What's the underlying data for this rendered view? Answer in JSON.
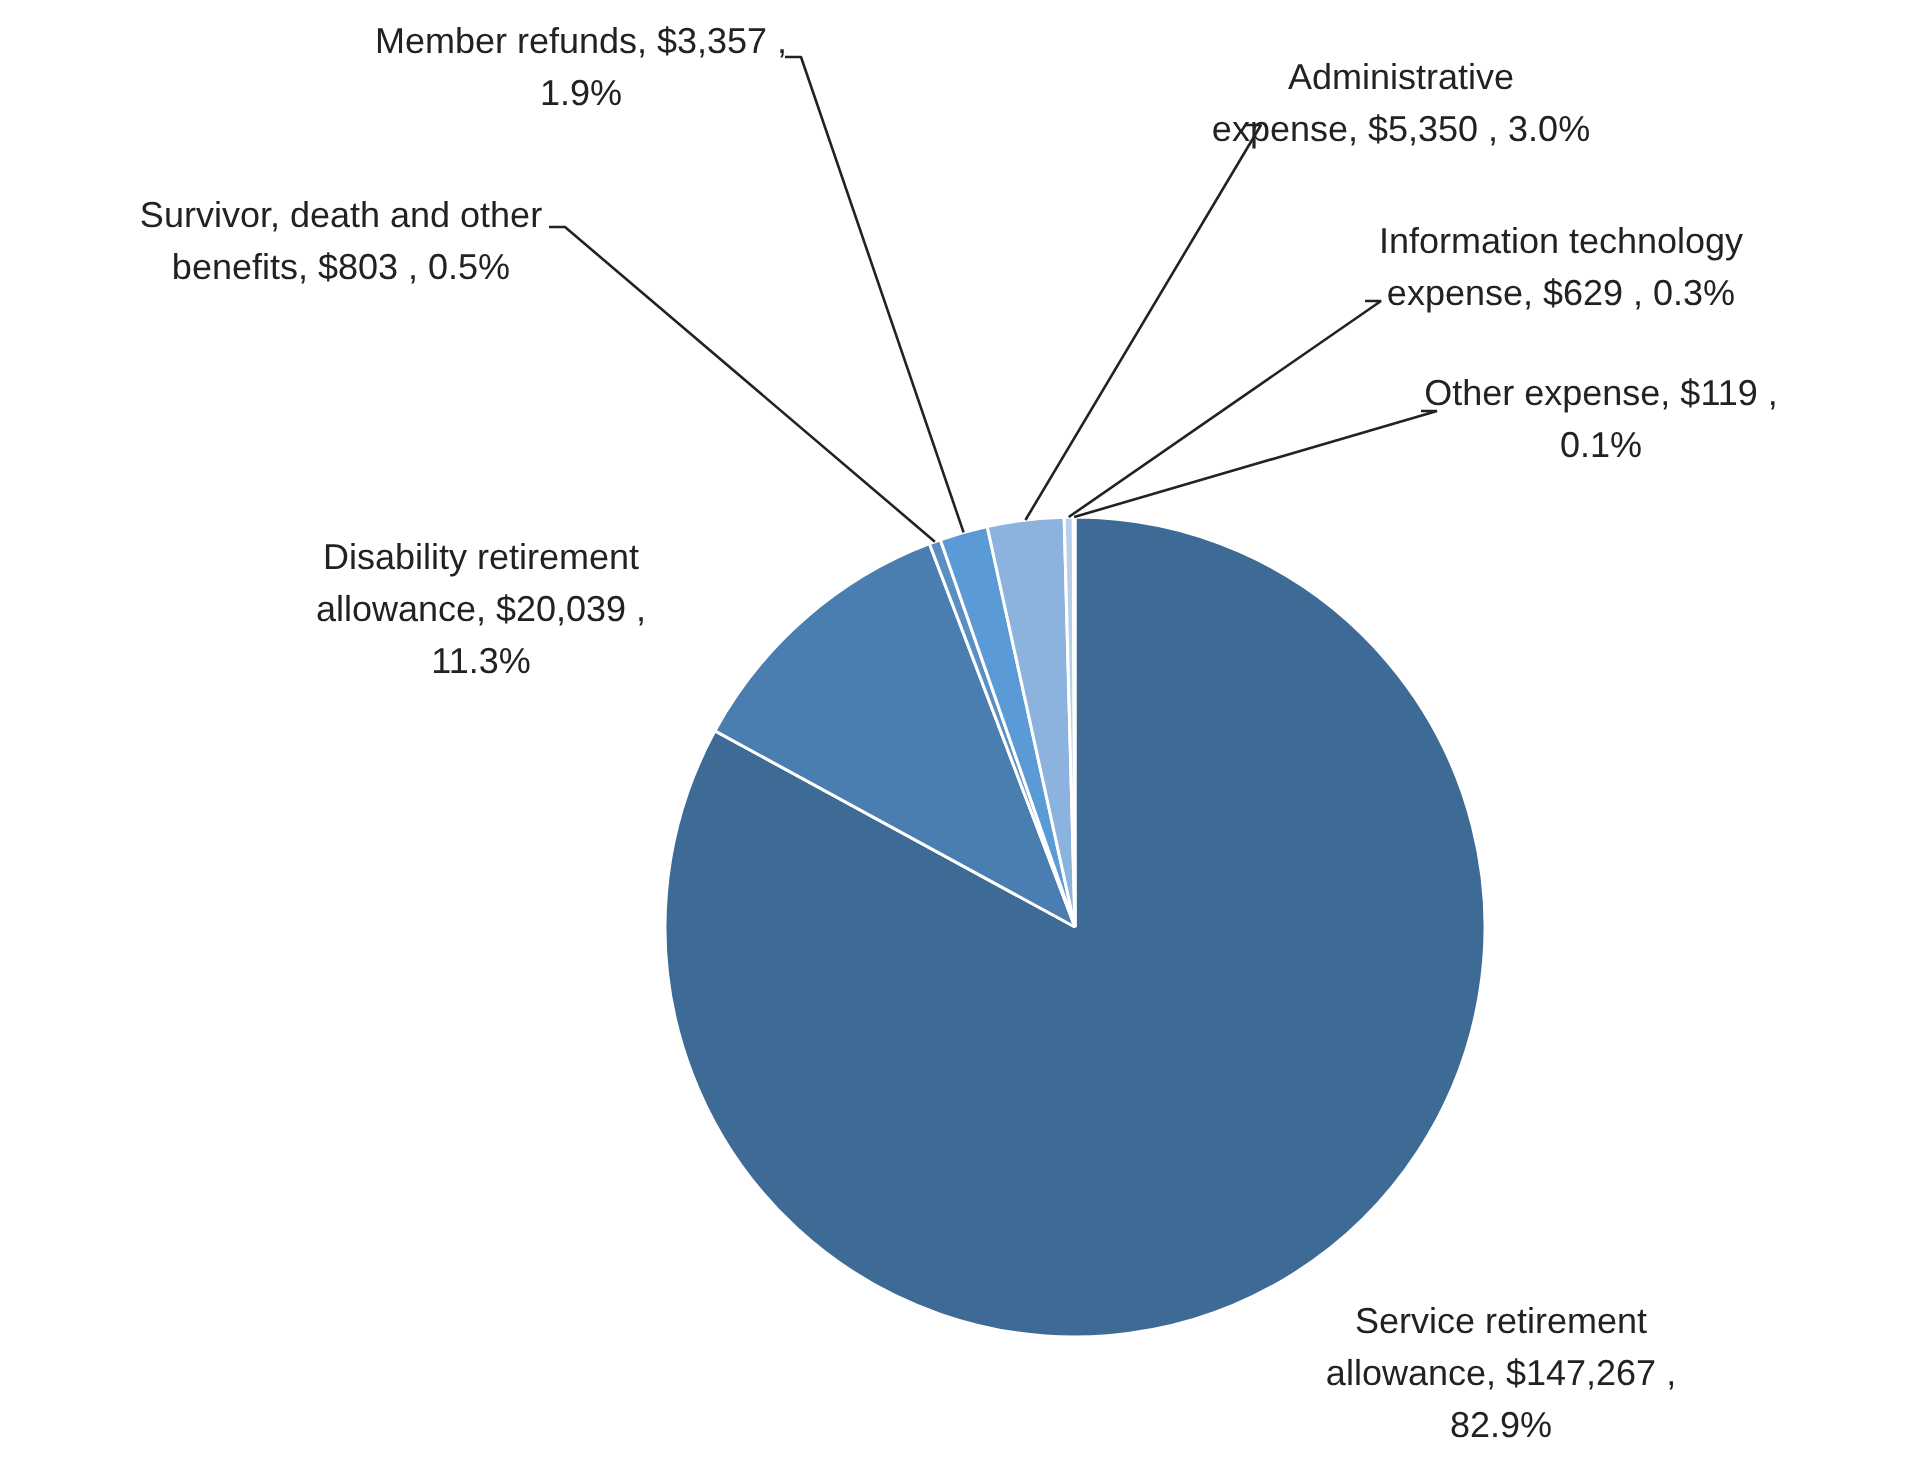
{
  "chart_data": {
    "type": "pie",
    "categories": [
      "Service retirement allowance",
      "Disability retirement allowance",
      "Survivor, death and other benefits",
      "Member refunds",
      "Administrative expense",
      "Information technology expense",
      "Other expense"
    ],
    "values": [
      147267,
      20039,
      803,
      3357,
      5350,
      629,
      119
    ],
    "value_labels": [
      "$147,267 , 82.9%",
      "$20,039 , 11.3%",
      "$803 , 0.5%",
      "$3,357 , 1.9%",
      "$5,350 , 3.0%",
      "$629 , 0.3%",
      "$119 , 0.1%"
    ],
    "colors": [
      "#3e6a96",
      "#4a7db0",
      "#5b8fc4",
      "#5a9ad6",
      "#8cb2de",
      "#b7cfeb",
      "#d6e4f4"
    ]
  }
}
